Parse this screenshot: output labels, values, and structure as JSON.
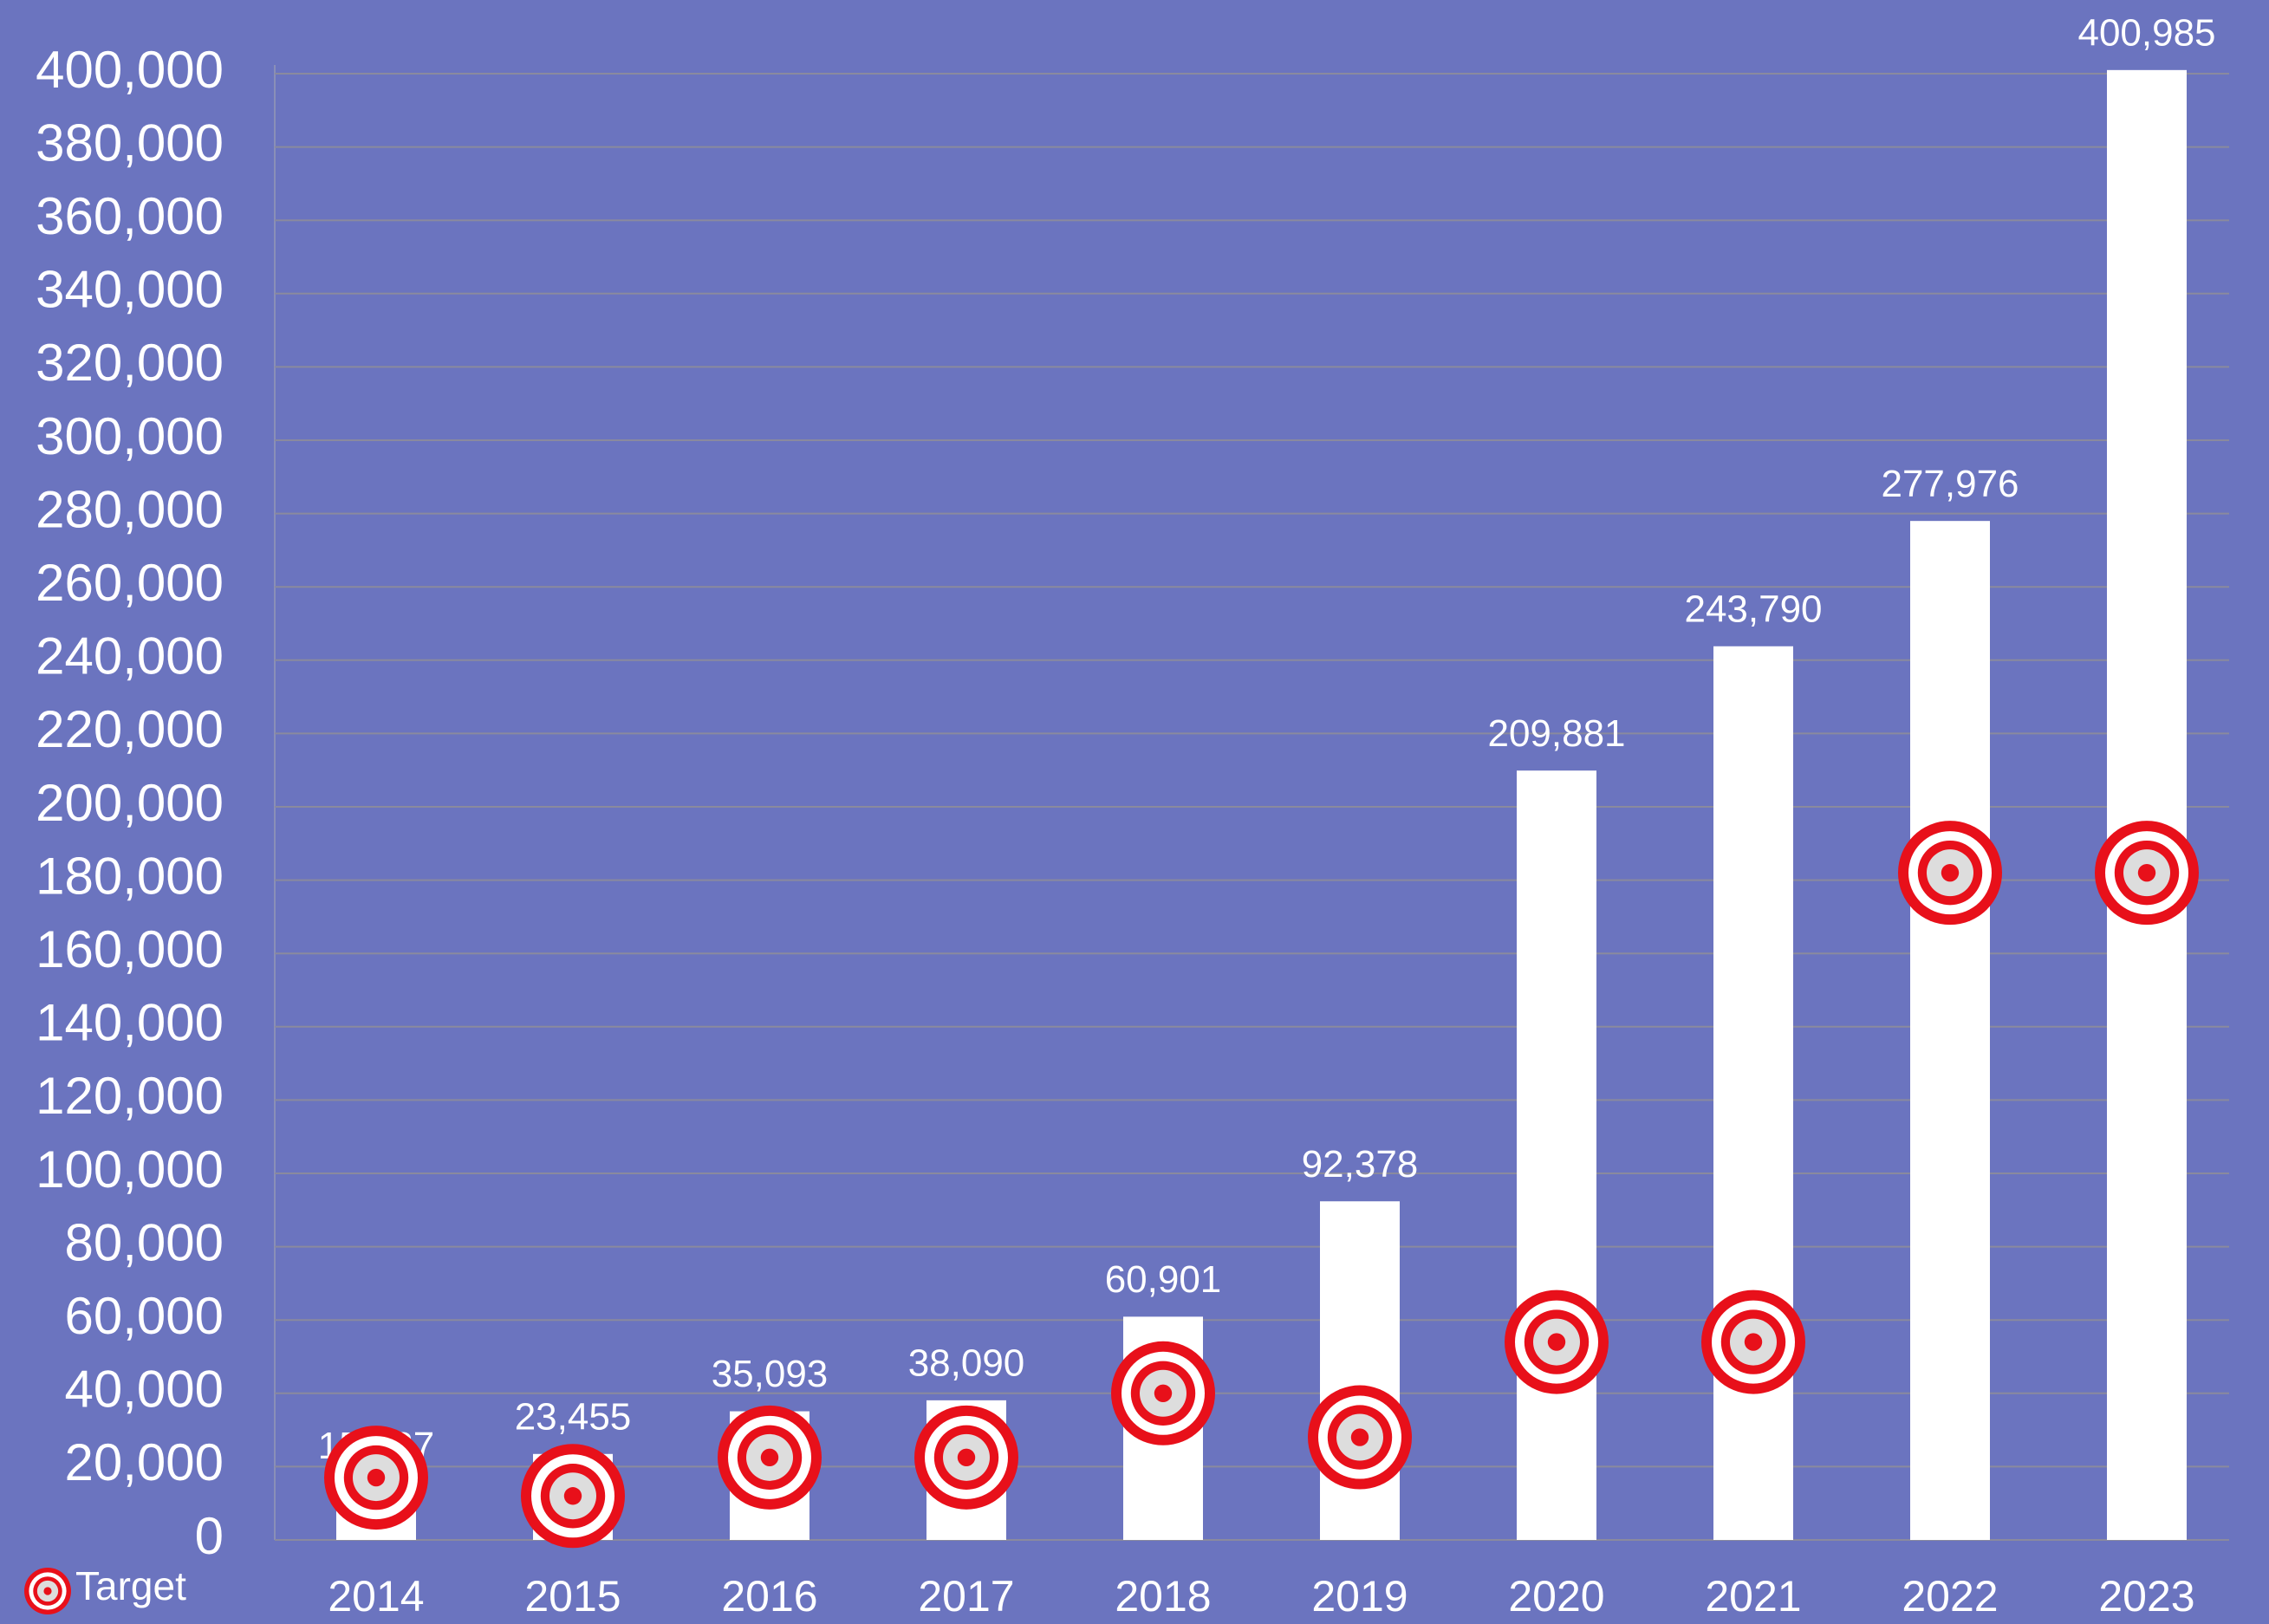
{
  "chart_data": {
    "type": "bar",
    "categories": [
      "2014",
      "2015",
      "2016",
      "2017",
      "2018",
      "2019",
      "2020",
      "2021",
      "2022",
      "2023"
    ],
    "series": [
      {
        "color": "#ffffff",
        "values": [
          15537,
          23455,
          35093,
          38090,
          60901,
          92378,
          209881,
          243790,
          277976,
          400985
        ],
        "value_labels": [
          "15,537",
          "23,455",
          "35,093",
          "38,090",
          "60,901",
          "92,378",
          "209,881",
          "243,790",
          "277,976",
          "400,985"
        ]
      },
      {
        "name": "Target",
        "type": "scatter",
        "color": "#e8101a",
        "values": [
          17000,
          12000,
          22500,
          22500,
          40000,
          28000,
          54000,
          54000,
          182000,
          182000
        ]
      }
    ],
    "ylim": [
      0,
      400000
    ],
    "yticks": [
      0,
      {
        "value": 20000,
        "label": "20,000"
      },
      {
        "value": 40000,
        "label": "40,000"
      },
      {
        "value": 60000,
        "label": "60,000"
      },
      {
        "value": 80000,
        "label": "80,000"
      },
      {
        "value": 100000,
        "label": "100,000"
      },
      {
        "value": 120000,
        "label": "120,000"
      },
      {
        "value": 140000,
        "label": "140,000"
      },
      {
        "value": 160000,
        "label": "160,000"
      },
      {
        "value": 180000,
        "label": "180,000"
      },
      {
        "value": 200000,
        "label": "200,000"
      },
      {
        "value": 220000,
        "label": "220,000"
      },
      {
        "value": 240000,
        "label": "240,000"
      },
      {
        "value": 260000,
        "label": "260,000"
      },
      {
        "value": 280000,
        "label": "280,000"
      },
      {
        "value": 300000,
        "label": "300,000"
      },
      {
        "value": 320000,
        "label": "320,000"
      },
      {
        "value": 340000,
        "label": "340,000"
      },
      {
        "value": 360000,
        "label": "360,000"
      },
      {
        "value": 380000,
        "label": "380,000"
      },
      {
        "value": 400000,
        "label": "400,000"
      }
    ],
    "grid": true,
    "background": "#6b74bf",
    "legend": "bottom-left"
  }
}
